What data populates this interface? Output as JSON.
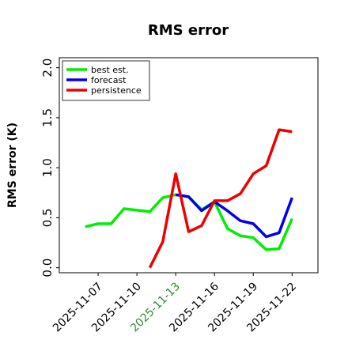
{
  "chart_data": {
    "type": "line",
    "title": "RMS error",
    "y_label": "RMS error (K)",
    "x": [
      "2025-11-06",
      "2025-11-07",
      "2025-11-08",
      "2025-11-09",
      "2025-11-10",
      "2025-11-11",
      "2025-11-12",
      "2025-11-13",
      "2025-11-14",
      "2025-11-15",
      "2025-11-16",
      "2025-11-17",
      "2025-11-18",
      "2025-11-19",
      "2025-11-20",
      "2025-11-21",
      "2025-11-22"
    ],
    "series": [
      {
        "name": "best est.",
        "color": "#00ee00",
        "values": [
          0.41,
          0.44,
          0.44,
          0.59,
          0.575,
          0.56,
          0.7,
          0.73,
          0.71,
          0.58,
          0.66,
          0.39,
          0.32,
          0.3,
          0.18,
          0.19,
          0.49
        ]
      },
      {
        "name": "forecast",
        "color": "#0000ee",
        "values": [
          null,
          null,
          null,
          null,
          null,
          null,
          null,
          0.73,
          0.71,
          0.57,
          0.66,
          0.57,
          0.47,
          0.44,
          0.31,
          0.35,
          0.7
        ]
      },
      {
        "name": "persistence",
        "color": "#ee0000",
        "values": [
          null,
          null,
          null,
          null,
          null,
          0.0,
          0.26,
          0.94,
          0.36,
          0.42,
          0.67,
          0.67,
          0.74,
          0.94,
          1.02,
          1.38,
          1.36
        ]
      }
    ],
    "xlim": [
      "2025-11-04",
      "2025-11-24"
    ],
    "xticks": [
      "2025-11-07",
      "2025-11-10",
      "2025-11-13",
      "2025-11-16",
      "2025-11-19",
      "2025-11-22"
    ],
    "highlight_xtick": 2,
    "highlight_color": "#2e8b2e",
    "ylim": [
      -0.05,
      2.1
    ],
    "yticks": [
      {
        "value": 0,
        "label": "0.0"
      },
      {
        "value": 0.5,
        "label": "0.5"
      },
      {
        "value": 1,
        "label": "1.0"
      },
      {
        "value": 1.5,
        "label": "1.5"
      },
      {
        "value": 2,
        "label": "2.0"
      }
    ],
    "legend": "upper left"
  }
}
